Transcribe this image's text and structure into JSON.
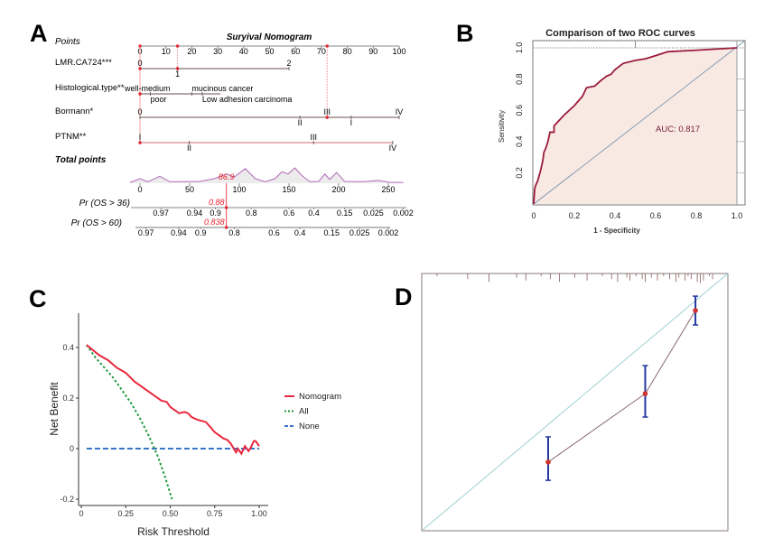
{
  "panels": {
    "a": "A",
    "b": "B",
    "c": "C",
    "d": "D"
  },
  "chart_data": [
    {
      "panel": "A",
      "type": "nomogram",
      "title": "Suryival Nomogram",
      "points_axis": {
        "label": "Points",
        "ticks": [
          0,
          10,
          20,
          30,
          40,
          50,
          60,
          70,
          80,
          90,
          100
        ]
      },
      "variables": [
        {
          "name": "LMR.CA724***",
          "range": [
            0,
            57.5
          ],
          "levels": [
            {
              "label": "0",
              "points": 0,
              "side": "above"
            },
            {
              "label": "1",
              "points": 14.5,
              "side": "below"
            },
            {
              "label": "2",
              "points": 57.5,
              "side": "above"
            }
          ]
        },
        {
          "name": "Histological.type**",
          "range": [
            0,
            31
          ],
          "levels": [
            {
              "label": "well-medium",
              "points": 0,
              "side": "above"
            },
            {
              "label": "poor",
              "points": 4,
              "side": "below"
            },
            {
              "label": "mucinous cancer",
              "points": 20,
              "side": "above"
            },
            {
              "label": "Low adhesion carcinoma",
              "points": 24,
              "side": "below"
            }
          ]
        },
        {
          "name": "Bormann*",
          "range": [
            0,
            100
          ],
          "levels": [
            {
              "label": "0",
              "points": 0,
              "side": "above"
            },
            {
              "label": "II",
              "points": 61.7,
              "side": "below"
            },
            {
              "label": "III",
              "points": 72.2,
              "side": "above"
            },
            {
              "label": "I",
              "points": 81.5,
              "side": "below"
            },
            {
              "label": "IV",
              "points": 100,
              "side": "above"
            }
          ]
        },
        {
          "name": "PTNM**",
          "range": [
            0,
            97.5
          ],
          "levels": [
            {
              "label": "I",
              "points": 0,
              "side": "above"
            },
            {
              "label": "II",
              "points": 19,
              "side": "below"
            },
            {
              "label": "III",
              "points": 67,
              "side": "above"
            },
            {
              "label": "IV",
              "points": 97.5,
              "side": "below"
            }
          ]
        }
      ],
      "selected_points": [
        0,
        14.5,
        72.2
      ],
      "total_points": {
        "label": "Total points",
        "ticks": [
          0,
          50,
          100,
          150,
          200,
          250
        ],
        "marked_value": "86.9",
        "density": [
          [
            -10,
            0.05
          ],
          [
            0,
            0.3
          ],
          [
            8,
            0.1
          ],
          [
            20,
            0.45
          ],
          [
            30,
            0.1
          ],
          [
            45,
            0.1
          ],
          [
            60,
            0.12
          ],
          [
            75,
            0.3
          ],
          [
            87,
            0.6
          ],
          [
            95,
            0.4
          ],
          [
            106,
            0.95
          ],
          [
            116,
            0.3
          ],
          [
            126,
            0.1
          ],
          [
            136,
            0.3
          ],
          [
            143,
            0.75
          ],
          [
            149,
            0.6
          ],
          [
            156,
            1
          ],
          [
            163,
            0.5
          ],
          [
            171,
            0.1
          ],
          [
            180,
            0.12
          ],
          [
            186,
            0.6
          ],
          [
            191,
            0.25
          ],
          [
            198,
            0.7
          ],
          [
            206,
            0.12
          ],
          [
            225,
            0.1
          ],
          [
            240,
            0.18
          ],
          [
            252,
            0.05
          ],
          [
            265,
            0.05
          ]
        ]
      },
      "probability_scales": [
        {
          "label": "Pr (OS > 36)",
          "marked_value": "0.88",
          "ticks": [
            {
              "label": "0.97",
              "total": 21
            },
            {
              "label": "0.94",
              "total": 55
            },
            {
              "label": "0.9",
              "total": 76
            },
            {
              "label": "0.8",
              "total": 112
            },
            {
              "label": "0.6",
              "total": 150
            },
            {
              "label": "0.4",
              "total": 175
            },
            {
              "label": "0.15",
              "total": 206
            },
            {
              "label": "0.025",
              "total": 235
            },
            {
              "label": "0.002",
              "total": 265
            }
          ]
        },
        {
          "label": "Pr (OS > 60)",
          "marked_value": "0.838",
          "ticks": [
            {
              "label": "0.97",
              "total": 6
            },
            {
              "label": "0.94",
              "total": 39
            },
            {
              "label": "0.9",
              "total": 61
            },
            {
              "label": "0.8",
              "total": 95
            },
            {
              "label": "0.6",
              "total": 135
            },
            {
              "label": "0.4",
              "total": 161
            },
            {
              "label": "0.15",
              "total": 193
            },
            {
              "label": "0.025",
              "total": 221
            },
            {
              "label": "0.002",
              "total": 250
            }
          ]
        }
      ]
    },
    {
      "panel": "B",
      "type": "line",
      "title": "Comparison of two ROC curves",
      "xlabel": "1 - Specificity",
      "ylabel": "Sensitivity",
      "xlim": [
        0,
        1
      ],
      "ylim": [
        0,
        1
      ],
      "xticks": [
        "0",
        "0.2",
        "0.4",
        "0.6",
        "0.8",
        "1.0"
      ],
      "yticks": [
        "0.2",
        "0.4",
        "0.6",
        "0.8",
        "1.0"
      ],
      "annotation": "AUC: 0.817",
      "colors": {
        "curve": "#9b1b3c",
        "fill": "#f9e9e3",
        "diagonal": "#6f8fa8"
      },
      "roc": {
        "x": [
          0,
          0.005,
          0.01,
          0.02,
          0.035,
          0.045,
          0.05,
          0.06,
          0.07,
          0.08,
          0.1,
          0.1,
          0.15,
          0.2,
          0.24,
          0.26,
          0.3,
          0.33,
          0.36,
          0.38,
          0.4,
          0.44,
          0.5,
          0.55,
          0.6,
          0.66,
          0.8,
          1.0
        ],
        "y": [
          0,
          0.1,
          0.12,
          0.15,
          0.22,
          0.28,
          0.33,
          0.36,
          0.4,
          0.46,
          0.46,
          0.5,
          0.57,
          0.63,
          0.69,
          0.745,
          0.755,
          0.79,
          0.82,
          0.83,
          0.86,
          0.9,
          0.92,
          0.93,
          0.95,
          0.975,
          0.985,
          1.0
        ]
      }
    },
    {
      "panel": "C",
      "type": "line",
      "xlabel": "Risk Threshold",
      "ylabel": "Net Benefit",
      "xlim": [
        0,
        1.05
      ],
      "ylim": [
        -0.22,
        0.55
      ],
      "xticks": [
        "0",
        "0.25",
        "0.50",
        "0.75",
        "1.00"
      ],
      "yticks": [
        "-0.2",
        "0",
        "0.2",
        "0.4"
      ],
      "legend_position": "right",
      "series": [
        {
          "name": "Nomogram",
          "color": "#e8283c",
          "style": "solid",
          "x": [
            0.03,
            0.1,
            0.15,
            0.2,
            0.25,
            0.3,
            0.35,
            0.4,
            0.45,
            0.48,
            0.5,
            0.55,
            0.58,
            0.6,
            0.62,
            0.65,
            0.7,
            0.72,
            0.75,
            0.8,
            0.82,
            0.84,
            0.87,
            0.88,
            0.9,
            0.92,
            0.94,
            0.95,
            0.97,
            0.98,
            1.0
          ],
          "y": [
            0.41,
            0.37,
            0.35,
            0.32,
            0.3,
            0.265,
            0.24,
            0.215,
            0.19,
            0.185,
            0.165,
            0.14,
            0.145,
            0.14,
            0.125,
            0.115,
            0.105,
            0.09,
            0.065,
            0.04,
            0.035,
            0.02,
            -0.015,
            0.0,
            -0.02,
            0.01,
            -0.01,
            0.0,
            0.03,
            0.03,
            0.01
          ]
        },
        {
          "name": "All",
          "color": "#1e9a3c",
          "style": "dotted",
          "x": [
            0.03,
            0.08,
            0.13,
            0.18,
            0.23,
            0.28,
            0.33,
            0.38,
            0.43,
            0.47,
            0.51
          ],
          "y": [
            0.41,
            0.36,
            0.32,
            0.28,
            0.23,
            0.18,
            0.12,
            0.05,
            -0.03,
            -0.11,
            -0.2
          ]
        },
        {
          "name": "None",
          "color": "#3a73c8",
          "style": "dashed",
          "x": [
            0.03,
            1.0
          ],
          "y": [
            0,
            0
          ]
        }
      ]
    },
    {
      "panel": "D",
      "type": "scatter",
      "xlim": [
        0,
        1
      ],
      "ylim": [
        0,
        1
      ],
      "colors": {
        "points": "#d0342c",
        "error_bars": "#2437a0",
        "ideal_line": "#9fd0d4",
        "connect_line": "#7a5a60",
        "rug": "#8a5a60"
      },
      "points": [
        {
          "x": 0.413,
          "y": 0.267,
          "lower": 0.196,
          "upper": 0.365
        },
        {
          "x": 0.73,
          "y": 0.533,
          "lower": 0.442,
          "upper": 0.642
        },
        {
          "x": 0.894,
          "y": 0.856,
          "lower": 0.8,
          "upper": 0.912
        }
      ],
      "rug": [
        0.05,
        0.15,
        0.22,
        0.31,
        0.34,
        0.39,
        0.42,
        0.45,
        0.5,
        0.54,
        0.59,
        0.62,
        0.64,
        0.67,
        0.68,
        0.7,
        0.72,
        0.73,
        0.75,
        0.77,
        0.79,
        0.81,
        0.83,
        0.84,
        0.86,
        0.87,
        0.88,
        0.9,
        0.91,
        0.92,
        0.94,
        0.95
      ]
    }
  ]
}
